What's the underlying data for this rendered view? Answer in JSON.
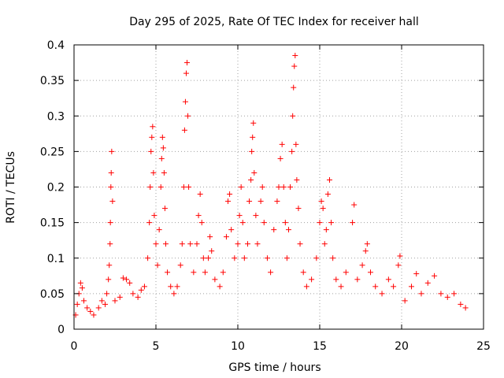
{
  "chart_data": {
    "type": "scatter",
    "title": "Day 295 of 2025, Rate Of TEC Index for receiver hall",
    "xlabel": "GPS time / hours",
    "ylabel": "ROTI / TECUs",
    "xlim": [
      0,
      25
    ],
    "ylim": [
      0,
      0.4
    ],
    "xticks": [
      "0",
      "5",
      "10",
      "15",
      "20",
      "25"
    ],
    "yticks": [
      "0",
      "0.05",
      "0.1",
      "0.15",
      "0.2",
      "0.25",
      "0.3",
      "0.35",
      "0.4"
    ],
    "grid": true,
    "marker": "+",
    "color": "#ff0000",
    "series": [
      {
        "values": [
          [
            0.1,
            0.02
          ],
          [
            0.2,
            0.035
          ],
          [
            0.3,
            0.05
          ],
          [
            0.4,
            0.065
          ],
          [
            0.5,
            0.058
          ],
          [
            0.6,
            0.04
          ],
          [
            0.8,
            0.03
          ],
          [
            1.0,
            0.025
          ],
          [
            1.2,
            0.02
          ],
          [
            1.5,
            0.03
          ],
          [
            1.7,
            0.04
          ],
          [
            1.9,
            0.035
          ],
          [
            2.0,
            0.05
          ],
          [
            2.1,
            0.07
          ],
          [
            2.15,
            0.09
          ],
          [
            2.2,
            0.12
          ],
          [
            2.22,
            0.15
          ],
          [
            2.25,
            0.2
          ],
          [
            2.27,
            0.22
          ],
          [
            2.3,
            0.25
          ],
          [
            2.35,
            0.18
          ],
          [
            2.5,
            0.04
          ],
          [
            2.8,
            0.045
          ],
          [
            3.0,
            0.072
          ],
          [
            3.2,
            0.07
          ],
          [
            3.4,
            0.065
          ],
          [
            3.6,
            0.05
          ],
          [
            3.9,
            0.045
          ],
          [
            4.1,
            0.055
          ],
          [
            4.3,
            0.06
          ],
          [
            4.5,
            0.1
          ],
          [
            4.6,
            0.15
          ],
          [
            4.65,
            0.2
          ],
          [
            4.7,
            0.25
          ],
          [
            4.75,
            0.27
          ],
          [
            4.8,
            0.285
          ],
          [
            4.85,
            0.22
          ],
          [
            4.9,
            0.16
          ],
          [
            5.0,
            0.12
          ],
          [
            5.1,
            0.09
          ],
          [
            5.2,
            0.14
          ],
          [
            5.3,
            0.2
          ],
          [
            5.35,
            0.24
          ],
          [
            5.4,
            0.27
          ],
          [
            5.45,
            0.255
          ],
          [
            5.5,
            0.22
          ],
          [
            5.55,
            0.17
          ],
          [
            5.6,
            0.12
          ],
          [
            5.7,
            0.08
          ],
          [
            5.9,
            0.06
          ],
          [
            6.1,
            0.05
          ],
          [
            6.3,
            0.06
          ],
          [
            6.5,
            0.09
          ],
          [
            6.6,
            0.12
          ],
          [
            6.7,
            0.2
          ],
          [
            6.75,
            0.28
          ],
          [
            6.8,
            0.32
          ],
          [
            6.85,
            0.36
          ],
          [
            6.9,
            0.375
          ],
          [
            6.95,
            0.3
          ],
          [
            7.0,
            0.2
          ],
          [
            7.1,
            0.12
          ],
          [
            7.3,
            0.08
          ],
          [
            7.5,
            0.12
          ],
          [
            7.6,
            0.16
          ],
          [
            7.7,
            0.19
          ],
          [
            7.8,
            0.15
          ],
          [
            7.9,
            0.1
          ],
          [
            8.0,
            0.08
          ],
          [
            8.2,
            0.1
          ],
          [
            8.3,
            0.13
          ],
          [
            8.4,
            0.11
          ],
          [
            8.6,
            0.07
          ],
          [
            8.9,
            0.06
          ],
          [
            9.1,
            0.08
          ],
          [
            9.3,
            0.13
          ],
          [
            9.4,
            0.18
          ],
          [
            9.5,
            0.19
          ],
          [
            9.6,
            0.14
          ],
          [
            9.8,
            0.1
          ],
          [
            10.0,
            0.12
          ],
          [
            10.1,
            0.16
          ],
          [
            10.2,
            0.2
          ],
          [
            10.3,
            0.15
          ],
          [
            10.4,
            0.1
          ],
          [
            10.6,
            0.12
          ],
          [
            10.7,
            0.18
          ],
          [
            10.8,
            0.21
          ],
          [
            10.85,
            0.25
          ],
          [
            10.9,
            0.27
          ],
          [
            10.95,
            0.29
          ],
          [
            11.0,
            0.22
          ],
          [
            11.1,
            0.16
          ],
          [
            11.2,
            0.12
          ],
          [
            11.4,
            0.18
          ],
          [
            11.5,
            0.2
          ],
          [
            11.6,
            0.15
          ],
          [
            11.8,
            0.1
          ],
          [
            12.0,
            0.08
          ],
          [
            12.2,
            0.14
          ],
          [
            12.4,
            0.18
          ],
          [
            12.5,
            0.2
          ],
          [
            12.6,
            0.24
          ],
          [
            12.7,
            0.26
          ],
          [
            12.8,
            0.2
          ],
          [
            12.9,
            0.15
          ],
          [
            13.0,
            0.1
          ],
          [
            13.1,
            0.14
          ],
          [
            13.2,
            0.2
          ],
          [
            13.3,
            0.25
          ],
          [
            13.35,
            0.3
          ],
          [
            13.4,
            0.34
          ],
          [
            13.45,
            0.37
          ],
          [
            13.5,
            0.385
          ],
          [
            13.55,
            0.26
          ],
          [
            13.6,
            0.21
          ],
          [
            13.7,
            0.17
          ],
          [
            13.8,
            0.12
          ],
          [
            14.0,
            0.08
          ],
          [
            14.2,
            0.06
          ],
          [
            14.5,
            0.07
          ],
          [
            14.8,
            0.1
          ],
          [
            15.0,
            0.15
          ],
          [
            15.1,
            0.18
          ],
          [
            15.2,
            0.17
          ],
          [
            15.3,
            0.12
          ],
          [
            15.4,
            0.14
          ],
          [
            15.5,
            0.19
          ],
          [
            15.6,
            0.21
          ],
          [
            15.7,
            0.15
          ],
          [
            15.8,
            0.1
          ],
          [
            16.0,
            0.07
          ],
          [
            16.3,
            0.06
          ],
          [
            16.6,
            0.08
          ],
          [
            17.0,
            0.15
          ],
          [
            17.1,
            0.175
          ],
          [
            17.3,
            0.07
          ],
          [
            17.6,
            0.09
          ],
          [
            17.8,
            0.11
          ],
          [
            17.9,
            0.12
          ],
          [
            18.1,
            0.08
          ],
          [
            18.4,
            0.06
          ],
          [
            18.8,
            0.05
          ],
          [
            19.2,
            0.07
          ],
          [
            19.5,
            0.06
          ],
          [
            19.8,
            0.09
          ],
          [
            19.9,
            0.103
          ],
          [
            20.2,
            0.04
          ],
          [
            20.6,
            0.06
          ],
          [
            20.9,
            0.078
          ],
          [
            21.2,
            0.05
          ],
          [
            21.6,
            0.065
          ],
          [
            22.0,
            0.075
          ],
          [
            22.4,
            0.05
          ],
          [
            22.8,
            0.045
          ],
          [
            23.2,
            0.05
          ],
          [
            23.6,
            0.035
          ],
          [
            23.9,
            0.03
          ]
        ]
      }
    ]
  }
}
